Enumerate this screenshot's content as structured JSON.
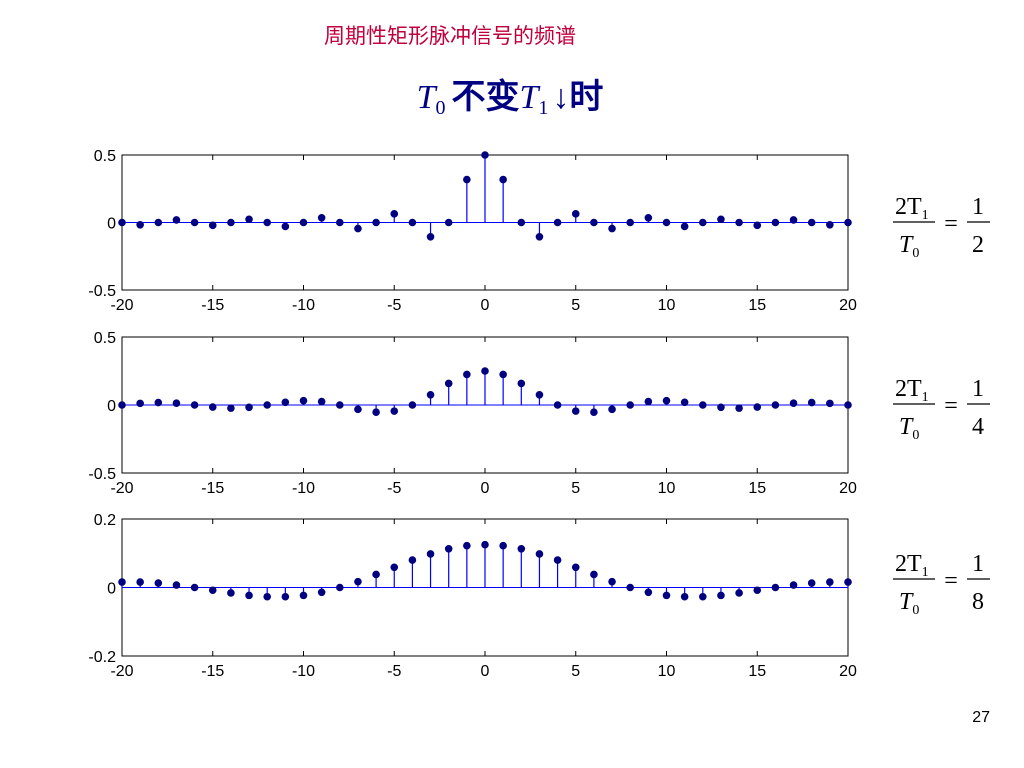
{
  "header": {
    "title": "周期性矩形脉冲信号的频谱",
    "subtitle": [
      "T",
      "0",
      "不变",
      "T",
      "1",
      "↓时"
    ]
  },
  "chart_data": [
    {
      "type": "stem",
      "x": [
        -20,
        -19,
        -18,
        -17,
        -16,
        -15,
        -14,
        -13,
        -12,
        -11,
        -10,
        -9,
        -8,
        -7,
        -6,
        -5,
        -4,
        -3,
        -2,
        -1,
        0,
        1,
        2,
        3,
        4,
        5,
        6,
        7,
        8,
        9,
        10,
        11,
        12,
        13,
        14,
        15,
        16,
        17,
        18,
        19,
        20
      ],
      "values": [
        0,
        -0.017,
        0,
        0.019,
        0,
        -0.021,
        0,
        0.024,
        0,
        -0.029,
        0,
        0.035,
        0,
        -0.045,
        0,
        0.064,
        0,
        -0.106,
        0,
        0.318,
        0.5,
        0.318,
        0,
        -0.106,
        0,
        0.064,
        0,
        -0.045,
        0,
        0.035,
        0,
        -0.029,
        0,
        0.024,
        0,
        -0.021,
        0,
        0.019,
        0,
        -0.017,
        0
      ],
      "color": "#0000ff",
      "marker_color": "#000080",
      "xlim": [
        -20,
        20
      ],
      "ylim": [
        -0.5,
        0.5
      ],
      "xticks": [
        -20,
        -15,
        -10,
        -5,
        0,
        5,
        10,
        15,
        20
      ],
      "yticks": [
        -0.5,
        0,
        0.5
      ]
    },
    {
      "type": "stem",
      "x": [
        -20,
        -19,
        -18,
        -17,
        -16,
        -15,
        -14,
        -13,
        -12,
        -11,
        -10,
        -9,
        -8,
        -7,
        -6,
        -5,
        -4,
        -3,
        -2,
        -1,
        0,
        1,
        2,
        3,
        4,
        5,
        6,
        7,
        8,
        9,
        10,
        11,
        12,
        13,
        14,
        15,
        16,
        17,
        18,
        19,
        20
      ],
      "values": [
        0,
        0.012,
        0.018,
        0.013,
        0,
        -0.015,
        -0.023,
        -0.017,
        0,
        0.02,
        0.032,
        0.025,
        0,
        -0.032,
        -0.053,
        -0.045,
        0,
        0.075,
        0.159,
        0.225,
        0.25,
        0.225,
        0.159,
        0.075,
        0,
        -0.045,
        -0.053,
        -0.032,
        0,
        0.025,
        0.032,
        0.02,
        0,
        -0.017,
        -0.023,
        -0.015,
        0,
        0.013,
        0.018,
        0.012,
        0
      ],
      "color": "#0000ff",
      "marker_color": "#000080",
      "xlim": [
        -20,
        20
      ],
      "ylim": [
        -0.5,
        0.5
      ],
      "xticks": [
        -20,
        -15,
        -10,
        -5,
        0,
        5,
        10,
        15,
        20
      ],
      "yticks": [
        -0.5,
        0,
        0.5
      ]
    },
    {
      "type": "stem",
      "x": [
        -20,
        -19,
        -18,
        -17,
        -16,
        -15,
        -14,
        -13,
        -12,
        -11,
        -10,
        -9,
        -8,
        -7,
        -6,
        -5,
        -4,
        -3,
        -2,
        -1,
        0,
        1,
        2,
        3,
        4,
        5,
        6,
        7,
        8,
        9,
        10,
        11,
        12,
        13,
        14,
        15,
        16,
        17,
        18,
        19,
        20
      ],
      "values": [
        0.016,
        0.016,
        0.013,
        0.007,
        0,
        -0.008,
        -0.016,
        -0.023,
        -0.027,
        -0.027,
        -0.023,
        -0.014,
        0,
        0.017,
        0.038,
        0.059,
        0.08,
        0.098,
        0.113,
        0.122,
        0.125,
        0.122,
        0.113,
        0.098,
        0.08,
        0.059,
        0.038,
        0.017,
        0,
        -0.014,
        -0.023,
        -0.027,
        -0.027,
        -0.023,
        -0.016,
        -0.008,
        0,
        0.007,
        0.013,
        0.016,
        0.016
      ],
      "color": "#0000ff",
      "marker_color": "#000080",
      "xlim": [
        -20,
        20
      ],
      "ylim": [
        -0.2,
        0.2
      ],
      "xticks": [
        -20,
        -15,
        -10,
        -5,
        0,
        5,
        10,
        15,
        20
      ],
      "yticks": [
        -0.2,
        0,
        0.2
      ]
    }
  ],
  "formulas": [
    {
      "numerator": [
        "2T",
        "1"
      ],
      "denominator": [
        "T",
        "0"
      ],
      "equals": "=",
      "ratio": [
        "1",
        "2"
      ]
    },
    {
      "numerator": [
        "2T",
        "1"
      ],
      "denominator": [
        "T",
        "0"
      ],
      "equals": "=",
      "ratio": [
        "1",
        "4"
      ]
    },
    {
      "numerator": [
        "2T",
        "1"
      ],
      "denominator": [
        "T",
        "0"
      ],
      "equals": "=",
      "ratio": [
        "1",
        "8"
      ]
    }
  ],
  "page_number": "27"
}
